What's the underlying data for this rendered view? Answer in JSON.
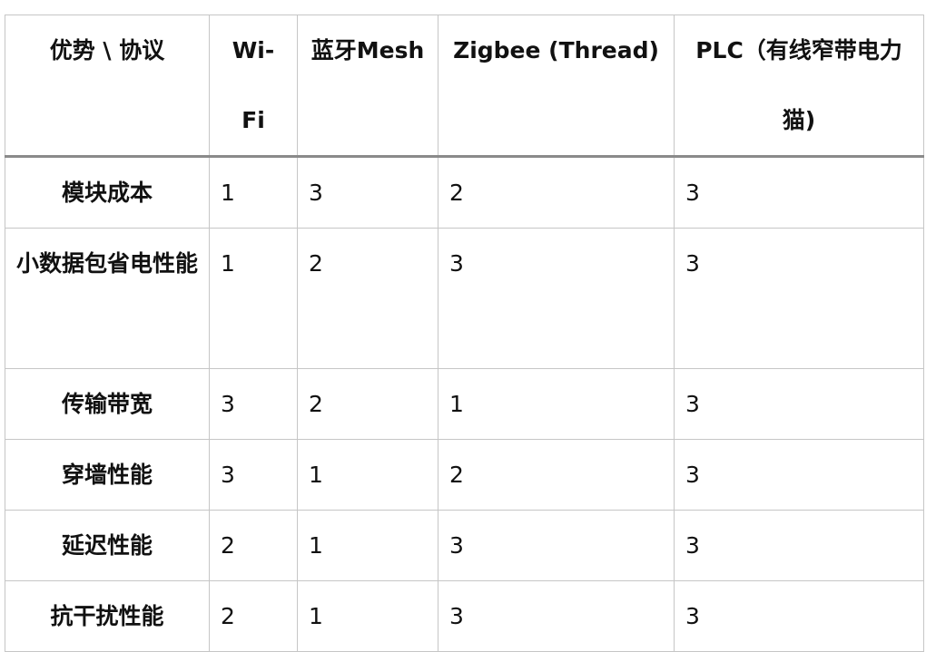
{
  "table": {
    "headers": [
      "优势 \\ 协议",
      "Wi-Fi",
      "蓝牙Mesh",
      "Zigbee (Thread)",
      "PLC（有线窄带电力猫)"
    ],
    "rows": [
      {
        "label": "模块成本",
        "values": [
          "1",
          "3",
          "2",
          "3"
        ]
      },
      {
        "label": "小数据包省电性能",
        "values": [
          "1",
          "2",
          "3",
          "3"
        ]
      },
      {
        "label": "传输带宽",
        "values": [
          "3",
          "2",
          "1",
          "3"
        ]
      },
      {
        "label": "穿墙性能",
        "values": [
          "3",
          "1",
          "2",
          "3"
        ]
      },
      {
        "label": "延迟性能",
        "values": [
          "2",
          "1",
          "3",
          "3"
        ]
      },
      {
        "label": "抗干扰性能",
        "values": [
          "2",
          "1",
          "3",
          "3"
        ]
      }
    ]
  }
}
